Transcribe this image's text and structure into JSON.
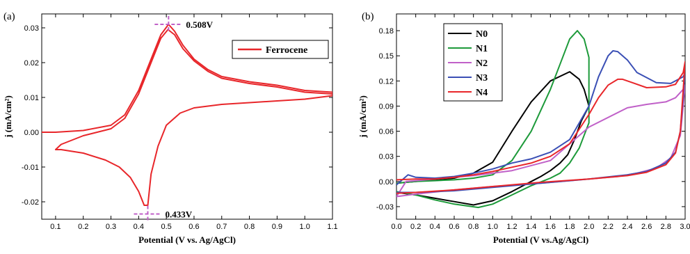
{
  "chart_data": [
    {
      "panel_label": "(a)",
      "type": "line",
      "xlabel": "Potential (V vs. Ag/AgCl)",
      "ylabel": "j (mA/cm²)",
      "xlim": [
        0.05,
        1.1
      ],
      "ylim": [
        -0.025,
        0.034
      ],
      "xticks": [
        "0.1",
        "0.2",
        "0.3",
        "0.4",
        "0.5",
        "0.6",
        "0.7",
        "0.8",
        "0.9",
        "1.0",
        "1.1"
      ],
      "yticks": [
        "-0.02",
        "-0.01",
        "0.00",
        "0.01",
        "0.02",
        "0.03"
      ],
      "legend_position": "top-right",
      "color": "#e8262a",
      "series": [
        {
          "name": "Ferrocene",
          "x": [
            0.05,
            0.1,
            0.2,
            0.3,
            0.35,
            0.4,
            0.45,
            0.48,
            0.508,
            0.53,
            0.56,
            0.6,
            0.65,
            0.7,
            0.8,
            0.9,
            1.0,
            1.1,
            1.1,
            1.0,
            0.9,
            0.8,
            0.7,
            0.6,
            0.55,
            0.5,
            0.47,
            0.445,
            0.433,
            0.42,
            0.4,
            0.37,
            0.33,
            0.28,
            0.2,
            0.12,
            0.1,
            0.12,
            0.2,
            0.3,
            0.35,
            0.4,
            0.45,
            0.48,
            0.506,
            0.53,
            0.56,
            0.6,
            0.65,
            0.7,
            0.8,
            0.9,
            1.0,
            1.1
          ],
          "y": [
            0.0,
            0.0,
            0.0005,
            0.002,
            0.005,
            0.012,
            0.022,
            0.028,
            0.031,
            0.029,
            0.025,
            0.021,
            0.018,
            0.016,
            0.0145,
            0.0135,
            0.012,
            0.0115,
            0.0105,
            0.0095,
            0.009,
            0.0085,
            0.008,
            0.007,
            0.0055,
            0.002,
            -0.004,
            -0.012,
            -0.021,
            -0.021,
            -0.017,
            -0.013,
            -0.01,
            -0.008,
            -0.006,
            -0.005,
            -0.005,
            -0.0035,
            -0.001,
            0.001,
            0.004,
            0.011,
            0.021,
            0.027,
            0.0295,
            0.028,
            0.024,
            0.0205,
            0.0175,
            0.0155,
            0.014,
            0.013,
            0.0115,
            0.011
          ]
        }
      ],
      "annotations": [
        {
          "text": "0.508V",
          "x": 0.508,
          "y": 0.031
        },
        {
          "text": "0.433V",
          "x": 0.433,
          "y": -0.0235
        }
      ]
    },
    {
      "panel_label": "(b)",
      "type": "line",
      "xlabel": "Potential (V vs.Ag/AgCl)",
      "ylabel": "j (mA/cm²)",
      "xlim": [
        0.0,
        3.0
      ],
      "ylim": [
        -0.045,
        0.2
      ],
      "xticks": [
        "0.0",
        "0.2",
        "0.4",
        "0.6",
        "0.8",
        "1.0",
        "1.2",
        "1.4",
        "1.6",
        "1.8",
        "2.0",
        "2.2",
        "2.4",
        "2.6",
        "2.8",
        "3.0"
      ],
      "yticks": [
        "-0.03",
        "0.00",
        "0.03",
        "0.06",
        "0.09",
        "0.12",
        "0.15",
        "0.18"
      ],
      "legend_position": "top-left",
      "series": [
        {
          "name": "N0",
          "color": "#000000",
          "x": [
            0.0,
            0.2,
            0.4,
            0.6,
            0.8,
            1.0,
            1.2,
            1.3,
            1.4,
            1.5,
            1.6,
            1.7,
            1.78,
            1.85,
            1.92,
            2.0,
            1.95,
            1.9,
            1.8,
            1.6,
            1.4,
            1.2,
            1.0,
            0.8,
            0.6,
            0.4,
            0.2,
            0.0
          ],
          "y": [
            -0.013,
            -0.016,
            -0.02,
            -0.024,
            -0.028,
            -0.023,
            -0.012,
            -0.006,
            0.0,
            0.006,
            0.013,
            0.022,
            0.032,
            0.05,
            0.072,
            0.09,
            0.11,
            0.122,
            0.131,
            0.12,
            0.095,
            0.06,
            0.023,
            0.01,
            0.004,
            0.002,
            0.0,
            -0.002
          ]
        },
        {
          "name": "N1",
          "color": "#1d9a3a",
          "x": [
            0.0,
            0.2,
            0.4,
            0.6,
            0.85,
            1.0,
            1.2,
            1.4,
            1.6,
            1.7,
            1.8,
            1.9,
            2.0,
            2.0,
            1.95,
            1.88,
            1.8,
            1.7,
            1.6,
            1.4,
            1.2,
            1.0,
            0.8,
            0.6,
            0.4,
            0.2,
            0.0
          ],
          "y": [
            -0.012,
            -0.016,
            -0.022,
            -0.027,
            -0.031,
            -0.027,
            -0.016,
            -0.005,
            0.004,
            0.01,
            0.022,
            0.04,
            0.07,
            0.148,
            0.17,
            0.18,
            0.17,
            0.14,
            0.11,
            0.06,
            0.025,
            0.008,
            0.004,
            0.002,
            0.001,
            0.0,
            -0.002
          ]
        },
        {
          "name": "N2",
          "color": "#c060c8",
          "x": [
            0.0,
            0.2,
            0.6,
            1.0,
            1.5,
            2.0,
            2.3,
            2.5,
            2.7,
            2.85,
            2.95,
            3.0,
            2.98,
            2.9,
            2.8,
            2.6,
            2.4,
            2.0,
            1.6,
            1.2,
            0.8,
            0.4,
            0.1,
            0.0
          ],
          "y": [
            -0.018,
            -0.015,
            -0.01,
            -0.006,
            -0.002,
            0.003,
            0.006,
            0.01,
            0.016,
            0.028,
            0.055,
            0.115,
            0.11,
            0.1,
            0.095,
            0.092,
            0.088,
            0.065,
            0.025,
            0.013,
            0.007,
            0.003,
            0.0,
            -0.018
          ]
        },
        {
          "name": "N3",
          "color": "#3a4fb5",
          "x": [
            0.0,
            0.2,
            0.6,
            1.0,
            1.5,
            2.0,
            2.4,
            2.6,
            2.8,
            2.9,
            2.95,
            3.0,
            2.98,
            2.85,
            2.7,
            2.5,
            2.4,
            2.3,
            2.25,
            2.2,
            2.1,
            2.0,
            1.8,
            1.6,
            1.4,
            1.2,
            1.0,
            0.8,
            0.6,
            0.4,
            0.2,
            0.12,
            0.0
          ],
          "y": [
            -0.013,
            -0.013,
            -0.011,
            -0.007,
            -0.002,
            0.003,
            0.008,
            0.012,
            0.022,
            0.035,
            0.06,
            0.13,
            0.125,
            0.117,
            0.118,
            0.13,
            0.145,
            0.155,
            0.156,
            0.15,
            0.125,
            0.09,
            0.05,
            0.035,
            0.027,
            0.022,
            0.015,
            0.01,
            0.006,
            0.004,
            0.005,
            0.008,
            -0.004
          ]
        },
        {
          "name": "N4",
          "color": "#e8262a",
          "x": [
            0.0,
            0.2,
            0.6,
            1.0,
            1.5,
            2.0,
            2.4,
            2.6,
            2.8,
            2.9,
            2.95,
            3.0,
            2.98,
            2.9,
            2.8,
            2.6,
            2.45,
            2.35,
            2.3,
            2.2,
            2.1,
            2.0,
            1.8,
            1.6,
            1.4,
            1.2,
            1.0,
            0.8,
            0.6,
            0.4,
            0.2,
            0.0
          ],
          "y": [
            -0.014,
            -0.013,
            -0.01,
            -0.006,
            -0.001,
            0.003,
            0.007,
            0.011,
            0.02,
            0.034,
            0.06,
            0.143,
            0.13,
            0.116,
            0.113,
            0.112,
            0.118,
            0.122,
            0.122,
            0.115,
            0.1,
            0.08,
            0.045,
            0.03,
            0.022,
            0.017,
            0.012,
            0.008,
            0.005,
            0.003,
            0.003,
            0.002
          ]
        }
      ]
    }
  ]
}
